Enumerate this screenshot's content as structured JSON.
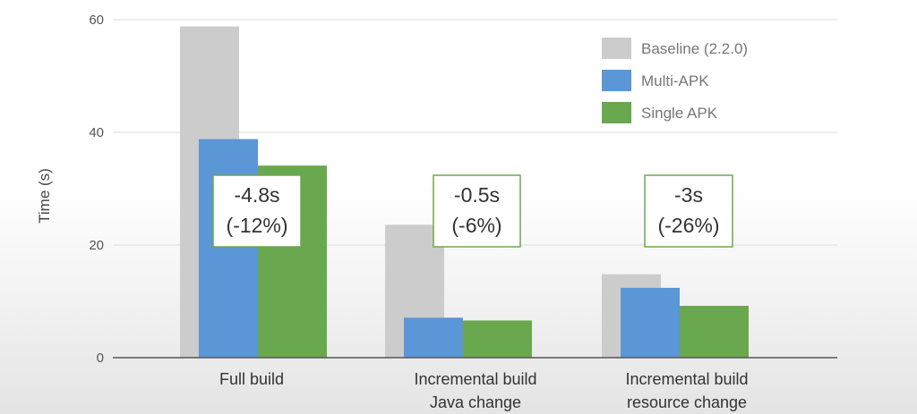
{
  "chart_data": {
    "type": "bar",
    "title": "",
    "ylabel": "Time (s)",
    "xlabel": "",
    "ylim": [
      0,
      60
    ],
    "yticks": [
      0,
      20,
      40,
      60
    ],
    "grid": true,
    "legend_position": "top-right",
    "categories": [
      [
        "Full build"
      ],
      [
        "Incremental build",
        "Java change"
      ],
      [
        "Incremental build",
        "resource change"
      ]
    ],
    "series": [
      {
        "name": "Baseline (2.2.0)",
        "color": "#cccccc",
        "values": [
          58.8,
          23.6,
          14.8
        ]
      },
      {
        "name": "Multi-APK",
        "color": "#5b96d6",
        "values": [
          38.8,
          7.1,
          12.4
        ]
      },
      {
        "name": "Single APK",
        "color": "#6aa84f",
        "values": [
          34.1,
          6.6,
          9.2
        ]
      }
    ],
    "annotations": [
      {
        "category": 0,
        "lines": [
          "-4.8s",
          "(-12%)"
        ]
      },
      {
        "category": 1,
        "lines": [
          "-0.5s",
          "(-6%)"
        ]
      },
      {
        "category": 2,
        "lines": [
          "-3s",
          "(-26%)"
        ]
      }
    ]
  }
}
